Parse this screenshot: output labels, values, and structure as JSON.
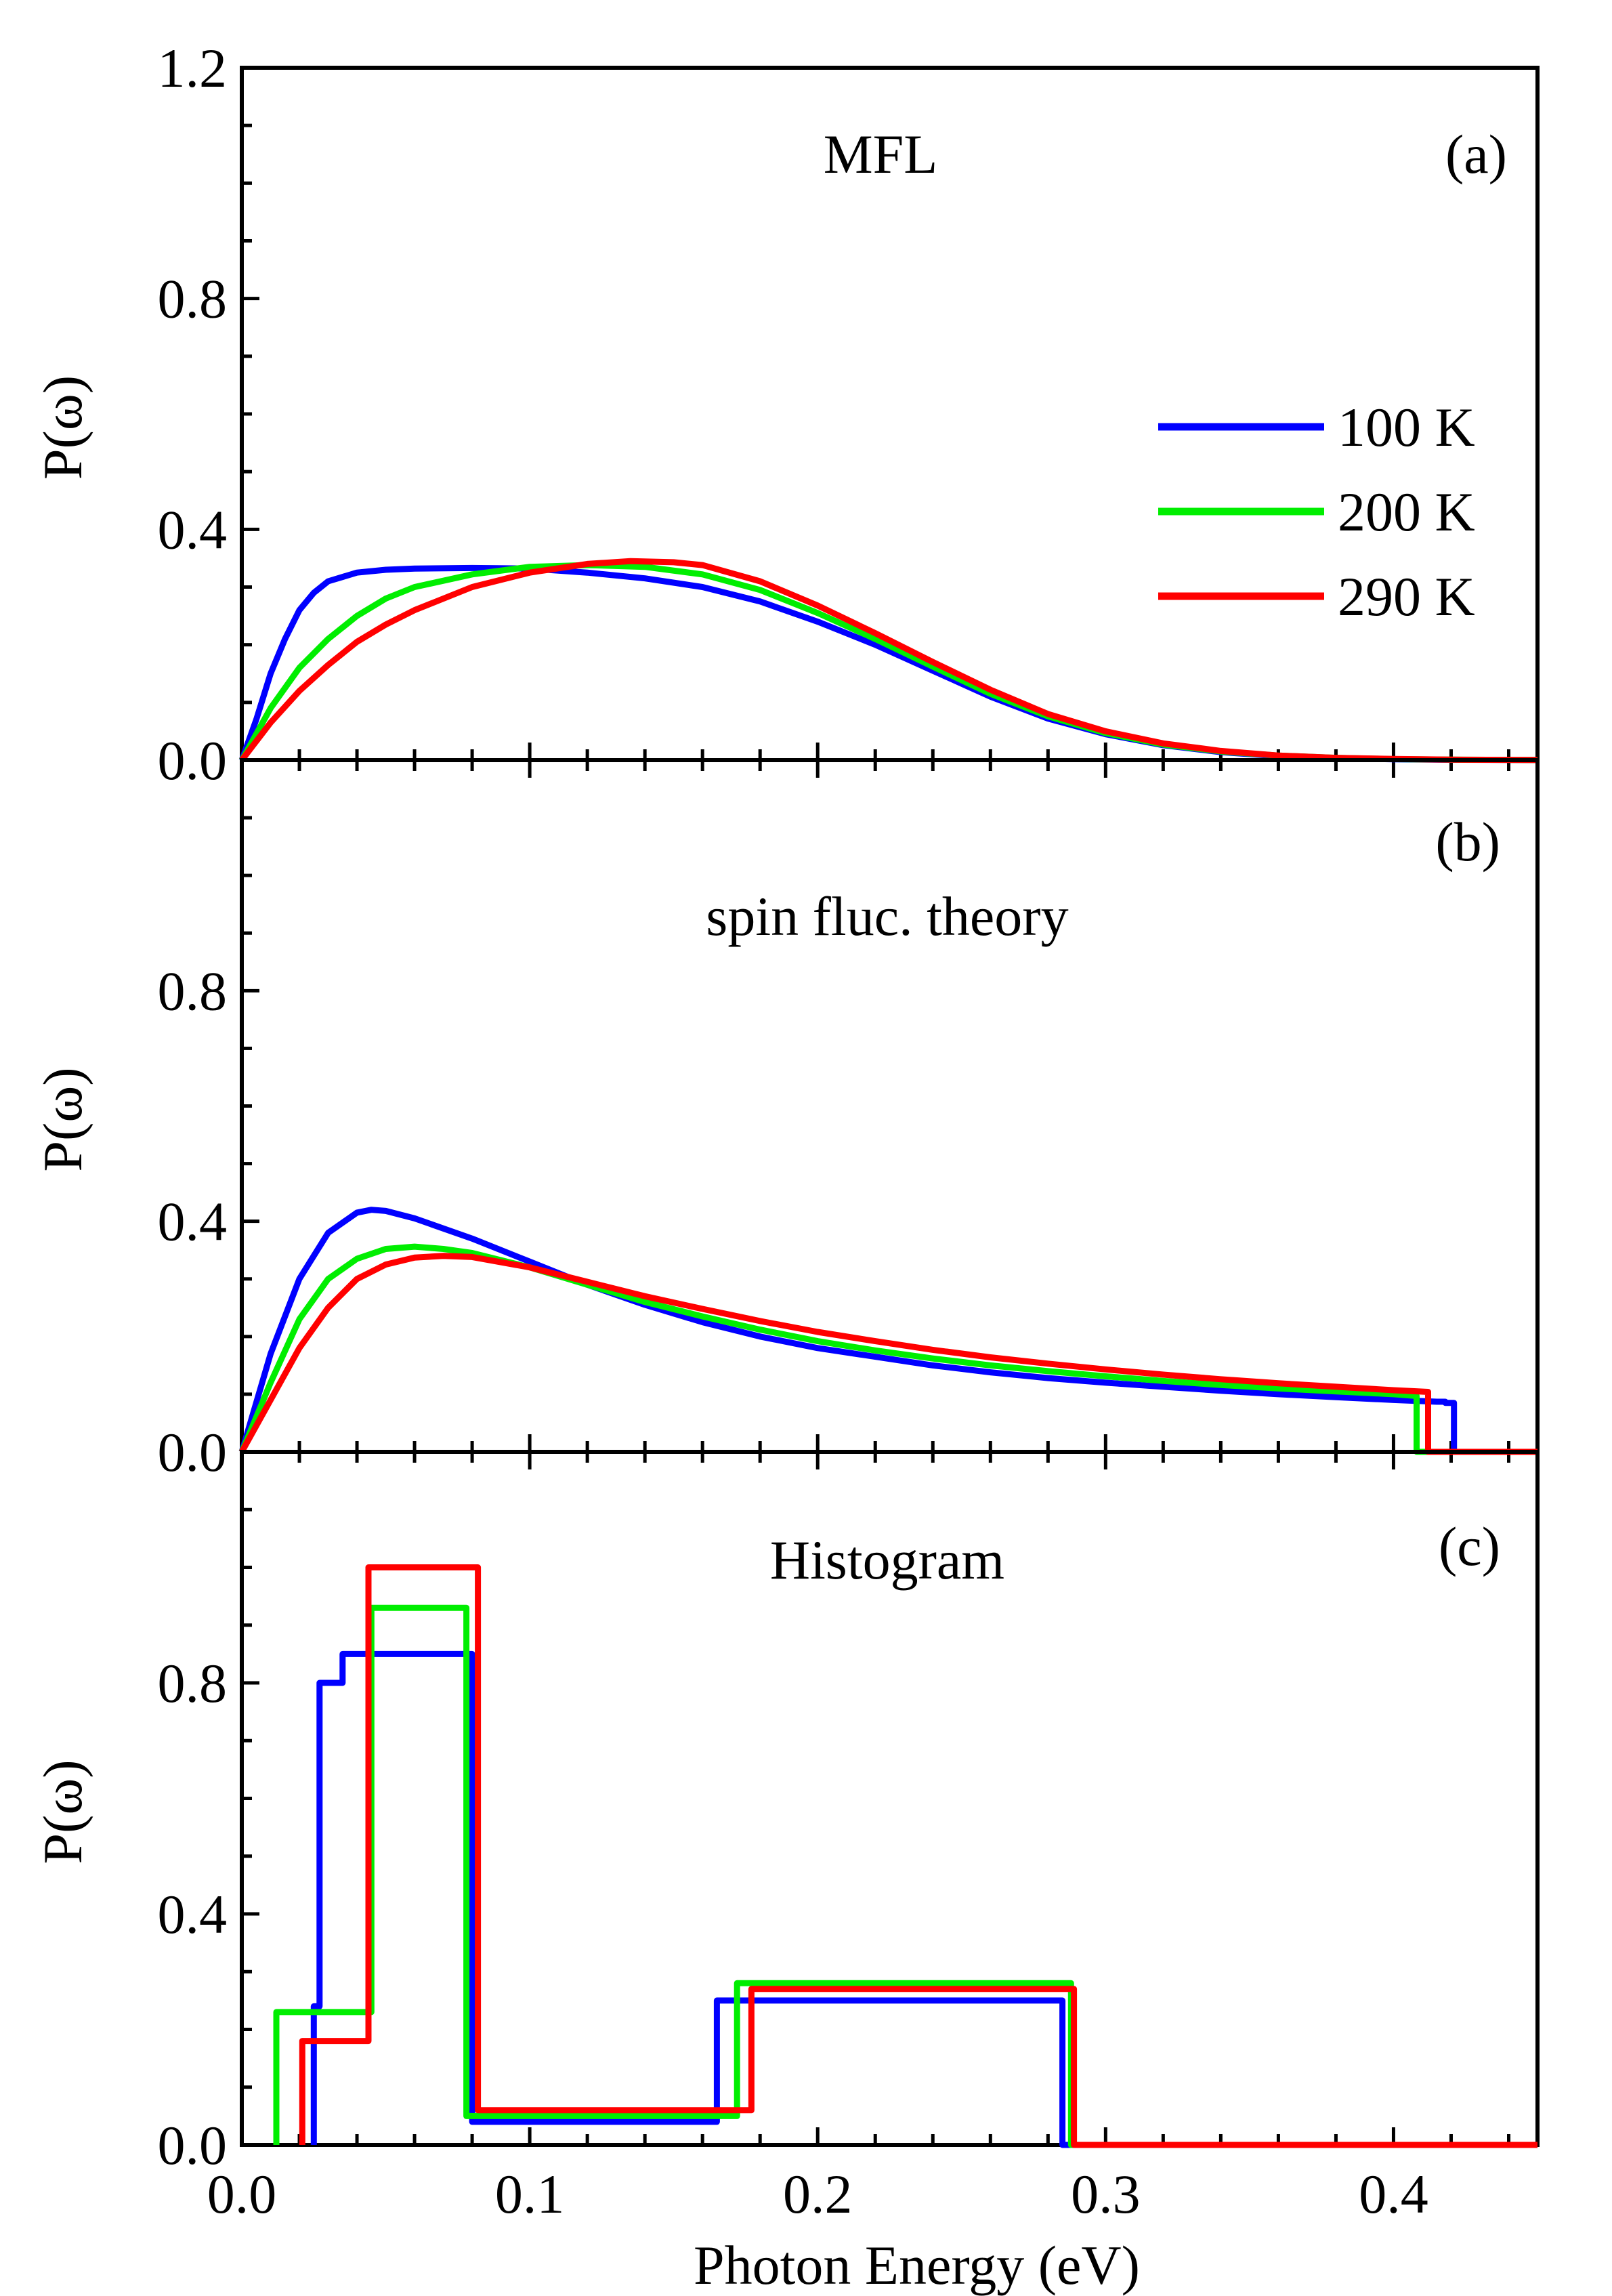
{
  "chart_data": [
    {
      "panel": "a",
      "type": "line",
      "title": "MFL",
      "panel_label": "(a)",
      "xlabel": "Photon Energy (eV)",
      "ylabel": "P(ω)",
      "xlim": [
        0,
        0.45
      ],
      "ylim": [
        0,
        1.2
      ],
      "yticks": [
        "0.0",
        "0.4",
        "0.8",
        "1.2"
      ],
      "legend": {
        "placement": "right",
        "entries": [
          "100 K",
          "200 K",
          "290 K"
        ]
      },
      "series": [
        {
          "name": "100 K",
          "color": "#0000ff",
          "x": [
            0,
            0.005,
            0.01,
            0.015,
            0.02,
            0.025,
            0.03,
            0.04,
            0.05,
            0.06,
            0.08,
            0.1,
            0.12,
            0.14,
            0.16,
            0.18,
            0.2,
            0.22,
            0.24,
            0.26,
            0.28,
            0.3,
            0.32,
            0.34,
            0.36,
            0.38,
            0.4,
            0.42,
            0.45
          ],
          "y": [
            0,
            0.07,
            0.15,
            0.21,
            0.26,
            0.29,
            0.31,
            0.325,
            0.33,
            0.332,
            0.333,
            0.332,
            0.325,
            0.315,
            0.3,
            0.275,
            0.24,
            0.2,
            0.155,
            0.11,
            0.072,
            0.045,
            0.026,
            0.014,
            0.007,
            0.003,
            0.0015,
            0.0006,
            0.0002
          ]
        },
        {
          "name": "200 K",
          "color": "#00ee00",
          "x": [
            0,
            0.01,
            0.02,
            0.03,
            0.04,
            0.05,
            0.06,
            0.08,
            0.1,
            0.12,
            0.14,
            0.16,
            0.18,
            0.2,
            0.22,
            0.24,
            0.26,
            0.28,
            0.3,
            0.32,
            0.34,
            0.36,
            0.38,
            0.4,
            0.42,
            0.45
          ],
          "y": [
            0,
            0.09,
            0.16,
            0.21,
            0.25,
            0.28,
            0.3,
            0.322,
            0.335,
            0.338,
            0.335,
            0.322,
            0.295,
            0.255,
            0.21,
            0.162,
            0.115,
            0.076,
            0.047,
            0.027,
            0.015,
            0.008,
            0.004,
            0.0018,
            0.0008,
            0.0002
          ]
        },
        {
          "name": "290 K",
          "color": "#ff0000",
          "x": [
            0,
            0.01,
            0.02,
            0.03,
            0.04,
            0.05,
            0.06,
            0.08,
            0.1,
            0.12,
            0.135,
            0.15,
            0.16,
            0.18,
            0.2,
            0.22,
            0.24,
            0.26,
            0.28,
            0.3,
            0.32,
            0.34,
            0.36,
            0.38,
            0.4,
            0.42,
            0.45
          ],
          "y": [
            0,
            0.065,
            0.12,
            0.165,
            0.205,
            0.235,
            0.26,
            0.3,
            0.325,
            0.34,
            0.345,
            0.343,
            0.338,
            0.31,
            0.268,
            0.22,
            0.17,
            0.122,
            0.08,
            0.05,
            0.029,
            0.016,
            0.008,
            0.004,
            0.002,
            0.0008,
            0.0002
          ]
        }
      ]
    },
    {
      "panel": "b",
      "type": "line",
      "title": "spin fluc. theory",
      "panel_label": "(b)",
      "xlabel": "Photon Energy (eV)",
      "ylabel": "P(ω)",
      "xlim": [
        0,
        0.45
      ],
      "ylim": [
        0,
        1.2
      ],
      "yticks": [
        "0.0",
        "0.4",
        "0.8"
      ],
      "series": [
        {
          "name": "100 K",
          "color": "#0000ff",
          "x": [
            0,
            0.01,
            0.02,
            0.03,
            0.04,
            0.045,
            0.05,
            0.06,
            0.08,
            0.1,
            0.12,
            0.14,
            0.16,
            0.18,
            0.2,
            0.22,
            0.24,
            0.26,
            0.28,
            0.3,
            0.32,
            0.34,
            0.36,
            0.38,
            0.4,
            0.415,
            0.418,
            0.418,
            0.421,
            0.421,
            0.45
          ],
          "y": [
            0,
            0.17,
            0.3,
            0.38,
            0.415,
            0.42,
            0.418,
            0.405,
            0.37,
            0.33,
            0.29,
            0.255,
            0.225,
            0.2,
            0.18,
            0.165,
            0.15,
            0.138,
            0.128,
            0.12,
            0.113,
            0.106,
            0.1,
            0.095,
            0.09,
            0.087,
            0.087,
            0.085,
            0.085,
            0,
            0
          ]
        },
        {
          "name": "200 K",
          "color": "#00ee00",
          "x": [
            0,
            0.01,
            0.02,
            0.03,
            0.04,
            0.05,
            0.06,
            0.07,
            0.08,
            0.1,
            0.12,
            0.14,
            0.16,
            0.18,
            0.2,
            0.22,
            0.24,
            0.26,
            0.28,
            0.3,
            0.32,
            0.34,
            0.36,
            0.38,
            0.4,
            0.408,
            0.408,
            0.45
          ],
          "y": [
            0,
            0.12,
            0.23,
            0.3,
            0.335,
            0.352,
            0.356,
            0.352,
            0.345,
            0.32,
            0.29,
            0.26,
            0.235,
            0.212,
            0.192,
            0.176,
            0.162,
            0.15,
            0.14,
            0.131,
            0.123,
            0.116,
            0.11,
            0.105,
            0.1,
            0.097,
            0,
            0
          ]
        },
        {
          "name": "290 K",
          "color": "#ff0000",
          "x": [
            0,
            0.01,
            0.02,
            0.03,
            0.04,
            0.05,
            0.06,
            0.07,
            0.08,
            0.1,
            0.12,
            0.14,
            0.16,
            0.18,
            0.2,
            0.22,
            0.24,
            0.26,
            0.28,
            0.3,
            0.32,
            0.34,
            0.36,
            0.38,
            0.4,
            0.412,
            0.412,
            0.45
          ],
          "y": [
            0,
            0.09,
            0.18,
            0.25,
            0.3,
            0.325,
            0.337,
            0.34,
            0.338,
            0.32,
            0.295,
            0.27,
            0.248,
            0.227,
            0.208,
            0.192,
            0.177,
            0.164,
            0.153,
            0.143,
            0.134,
            0.126,
            0.119,
            0.113,
            0.107,
            0.104,
            0,
            0
          ]
        }
      ]
    },
    {
      "panel": "c",
      "type": "line",
      "title": "Histogram",
      "panel_label": "(c)",
      "xlabel": "Photon Energy (eV)",
      "ylabel": "P(ω)",
      "xlim": [
        0,
        0.45
      ],
      "ylim": [
        0,
        1.2
      ],
      "xticks": [
        "0.0",
        "0.1",
        "0.2",
        "0.3",
        "0.4"
      ],
      "yticks": [
        "0.0",
        "0.4",
        "0.8"
      ],
      "series": [
        {
          "name": "100 K",
          "color": "#0000ff",
          "x": [
            0.025,
            0.025,
            0.027,
            0.027,
            0.035,
            0.035,
            0.08,
            0.08,
            0.165,
            0.165,
            0.285,
            0.285,
            0.45
          ],
          "y": [
            0,
            0.24,
            0.24,
            0.8,
            0.8,
            0.85,
            0.85,
            0.04,
            0.04,
            0.25,
            0.25,
            0,
            0
          ]
        },
        {
          "name": "200 K",
          "color": "#00ee00",
          "x": [
            0.012,
            0.012,
            0.045,
            0.045,
            0.078,
            0.078,
            0.172,
            0.172,
            0.288,
            0.288,
            0.45
          ],
          "y": [
            0,
            0.23,
            0.23,
            0.93,
            0.93,
            0.05,
            0.05,
            0.28,
            0.28,
            0,
            0
          ]
        },
        {
          "name": "290 K",
          "color": "#ff0000",
          "x": [
            0.021,
            0.021,
            0.044,
            0.044,
            0.082,
            0.082,
            0.177,
            0.177,
            0.289,
            0.289,
            0.45
          ],
          "y": [
            0,
            0.18,
            0.18,
            1.0,
            1.0,
            0.06,
            0.06,
            0.27,
            0.27,
            0,
            0
          ]
        }
      ]
    }
  ]
}
